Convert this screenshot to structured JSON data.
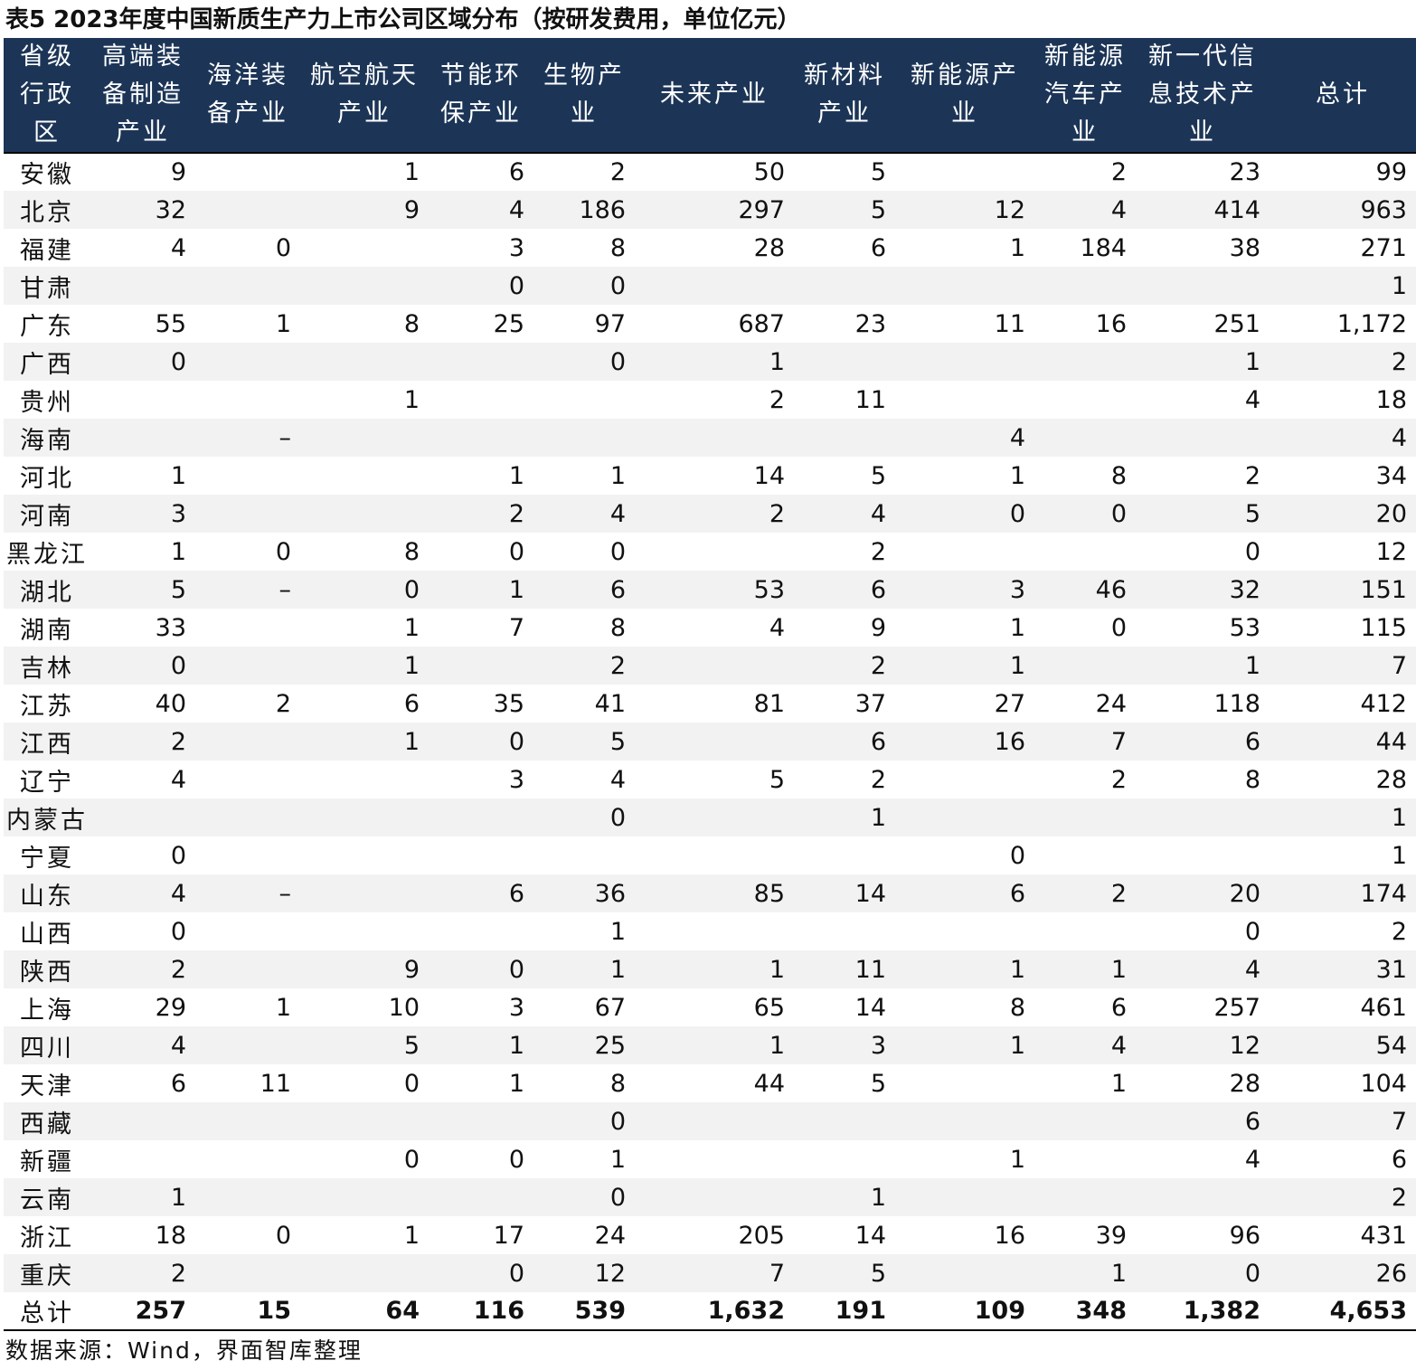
{
  "title": "表5 2023年度中国新质生产力上市公司区域分布（按研发费用，单位亿元）",
  "columns": [
    "省级行政区",
    "高端装备制造产业",
    "海洋装备产业",
    "航空航天产业",
    "节能环保产业",
    "生物产业",
    "未来产业",
    "新材料产业",
    "新能源产业",
    "新能源汽车产业",
    "新一代信息技术产业",
    "总计"
  ],
  "rows": [
    [
      "安徽",
      "9",
      "",
      "1",
      "6",
      "2",
      "50",
      "5",
      "",
      "2",
      "23",
      "99"
    ],
    [
      "北京",
      "32",
      "",
      "9",
      "4",
      "186",
      "297",
      "5",
      "12",
      "4",
      "414",
      "963"
    ],
    [
      "福建",
      "4",
      "0",
      "",
      "3",
      "8",
      "28",
      "6",
      "1",
      "184",
      "38",
      "271"
    ],
    [
      "甘肃",
      "",
      "",
      "",
      "0",
      "0",
      "",
      "",
      "",
      "",
      "",
      "1"
    ],
    [
      "广东",
      "55",
      "1",
      "8",
      "25",
      "97",
      "687",
      "23",
      "11",
      "16",
      "251",
      "1,172"
    ],
    [
      "广西",
      "0",
      "",
      "",
      "",
      "0",
      "1",
      "",
      "",
      "",
      "1",
      "2"
    ],
    [
      "贵州",
      "",
      "",
      "1",
      "",
      "",
      "2",
      "11",
      "",
      "",
      "4",
      "18"
    ],
    [
      "海南",
      "",
      "–",
      "",
      "",
      "",
      "",
      "",
      "4",
      "",
      "",
      "4"
    ],
    [
      "河北",
      "1",
      "",
      "",
      "1",
      "1",
      "14",
      "5",
      "1",
      "8",
      "2",
      "34"
    ],
    [
      "河南",
      "3",
      "",
      "",
      "2",
      "4",
      "2",
      "4",
      "0",
      "0",
      "5",
      "20"
    ],
    [
      "黑龙江",
      "1",
      "0",
      "8",
      "0",
      "0",
      "",
      "2",
      "",
      "",
      "0",
      "12"
    ],
    [
      "湖北",
      "5",
      "–",
      "0",
      "1",
      "6",
      "53",
      "6",
      "3",
      "46",
      "32",
      "151"
    ],
    [
      "湖南",
      "33",
      "",
      "1",
      "7",
      "8",
      "4",
      "9",
      "1",
      "0",
      "53",
      "115"
    ],
    [
      "吉林",
      "0",
      "",
      "1",
      "",
      "2",
      "",
      "2",
      "1",
      "",
      "1",
      "7"
    ],
    [
      "江苏",
      "40",
      "2",
      "6",
      "35",
      "41",
      "81",
      "37",
      "27",
      "24",
      "118",
      "412"
    ],
    [
      "江西",
      "2",
      "",
      "1",
      "0",
      "5",
      "",
      "6",
      "16",
      "7",
      "6",
      "44"
    ],
    [
      "辽宁",
      "4",
      "",
      "",
      "3",
      "4",
      "5",
      "2",
      "",
      "2",
      "8",
      "28"
    ],
    [
      "内蒙古",
      "",
      "",
      "",
      "",
      "0",
      "",
      "1",
      "",
      "",
      "",
      "1"
    ],
    [
      "宁夏",
      "0",
      "",
      "",
      "",
      "",
      "",
      "",
      "0",
      "",
      "",
      "1"
    ],
    [
      "山东",
      "4",
      "–",
      "",
      "6",
      "36",
      "85",
      "14",
      "6",
      "2",
      "20",
      "174"
    ],
    [
      "山西",
      "0",
      "",
      "",
      "",
      "1",
      "",
      "",
      "",
      "",
      "0",
      "2"
    ],
    [
      "陕西",
      "2",
      "",
      "9",
      "0",
      "1",
      "1",
      "11",
      "1",
      "1",
      "4",
      "31"
    ],
    [
      "上海",
      "29",
      "1",
      "10",
      "3",
      "67",
      "65",
      "14",
      "8",
      "6",
      "257",
      "461"
    ],
    [
      "四川",
      "4",
      "",
      "5",
      "1",
      "25",
      "1",
      "3",
      "1",
      "4",
      "12",
      "54"
    ],
    [
      "天津",
      "6",
      "11",
      "0",
      "1",
      "8",
      "44",
      "5",
      "",
      "1",
      "28",
      "104"
    ],
    [
      "西藏",
      "",
      "",
      "",
      "",
      "0",
      "",
      "",
      "",
      "",
      "6",
      "7"
    ],
    [
      "新疆",
      "",
      "",
      "0",
      "0",
      "1",
      "",
      "",
      "1",
      "",
      "4",
      "6"
    ],
    [
      "云南",
      "1",
      "",
      "",
      "",
      "0",
      "",
      "1",
      "",
      "",
      "",
      "2"
    ],
    [
      "浙江",
      "18",
      "0",
      "1",
      "17",
      "24",
      "205",
      "14",
      "16",
      "39",
      "96",
      "431"
    ],
    [
      "重庆",
      "2",
      "",
      "",
      "0",
      "12",
      "7",
      "5",
      "",
      "1",
      "0",
      "26"
    ]
  ],
  "total_row": [
    "总计",
    "257",
    "15",
    "64",
    "116",
    "539",
    "1,632",
    "191",
    "109",
    "348",
    "1,382",
    "4,653"
  ],
  "source": "数据来源：Wind，界面智库整理",
  "colors": {
    "header_bg": "#1c3557",
    "header_text": "#ffffff",
    "stripe": "#f2f2f2"
  }
}
